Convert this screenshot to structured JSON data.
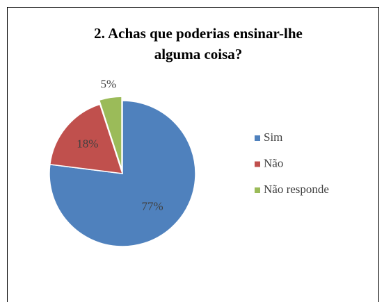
{
  "chart_data": {
    "type": "pie",
    "title": [
      "2. Achas que poderias ensinar-lhe",
      "alguma coisa?"
    ],
    "categories": [
      "Sim",
      "Não",
      "Não responde"
    ],
    "values": [
      77,
      18,
      5
    ],
    "value_labels": [
      "77%",
      "18%",
      "5%"
    ],
    "colors": [
      "#4f81bd",
      "#c0504d",
      "#9bbb59"
    ],
    "legend": "right"
  }
}
